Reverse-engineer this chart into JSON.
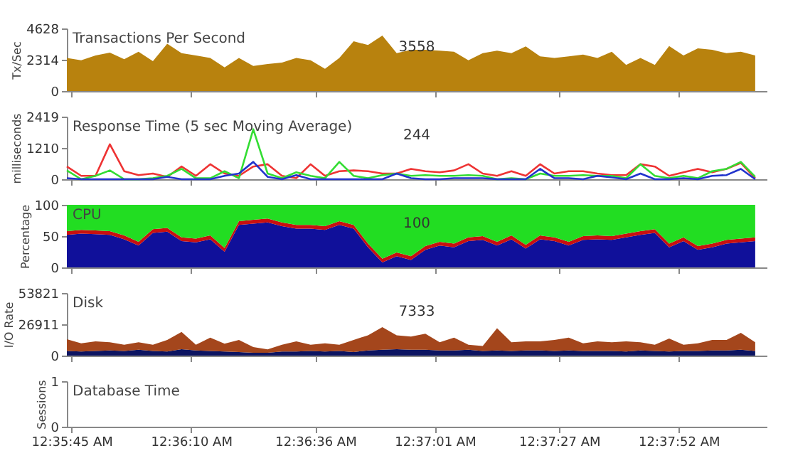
{
  "chart_data": [
    {
      "type": "area",
      "title": "Transactions Per Second",
      "ylabel": "Tx/Sec",
      "annotations": [
        "3558"
      ],
      "tick_labels": "y",
      "xlim": [
        0.595556,
        0.636222
      ],
      "xticks": [
        {
          "value": 0.595833,
          "label": null
        },
        {
          "value": 0.602778,
          "label": null
        },
        {
          "value": 0.61,
          "label": null
        },
        {
          "value": 0.616944,
          "label": null
        },
        {
          "value": 0.624167,
          "label": null
        },
        {
          "value": 0.631111,
          "label": null
        }
      ],
      "ylim": [
        0,
        4628
      ],
      "yticks": [
        0,
        2314,
        4628
      ],
      "x": [
        0.595556,
        0.596389,
        0.597222,
        0.598056,
        0.598889,
        0.599722,
        0.600556,
        0.601389,
        0.602222,
        0.603056,
        0.603889,
        0.604722,
        0.605556,
        0.606389,
        0.607222,
        0.608056,
        0.608889,
        0.609722,
        0.610556,
        0.611389,
        0.612222,
        0.613056,
        0.613889,
        0.614722,
        0.615556,
        0.616389,
        0.617222,
        0.618056,
        0.618889,
        0.619722,
        0.620556,
        0.621389,
        0.622222,
        0.623056,
        0.623889,
        0.624722,
        0.625556,
        0.626389,
        0.627222,
        0.628056,
        0.628889,
        0.629722,
        0.630556,
        0.631389,
        0.632222,
        0.633056,
        0.633889,
        0.634722,
        0.635556
      ],
      "series": [
        {
          "color": "#b8820e",
          "values": [
            2450,
            2280,
            2630,
            2840,
            2350,
            2910,
            2210,
            3500,
            2800,
            2630,
            2450,
            1750,
            2450,
            1860,
            2000,
            2100,
            2450,
            2280,
            1650,
            2450,
            3680,
            3400,
            4100,
            2800,
            3050,
            3050,
            2980,
            2910,
            2280,
            2800,
            2980,
            2800,
            3300,
            2560,
            2450,
            2560,
            2700,
            2450,
            2910,
            1930,
            2450,
            1930,
            3330,
            2630,
            3160,
            3050,
            2800,
            2910,
            2630
          ]
        }
      ]
    },
    {
      "type": "line",
      "title": "Response Time (5 sec Moving Average)",
      "ylabel": "milliseconds",
      "annotations": [
        "244"
      ],
      "tick_labels": "y",
      "xlim": [
        0.595556,
        0.636222
      ],
      "xticks": [
        {
          "value": 0.595833,
          "label": null
        },
        {
          "value": 0.602778,
          "label": null
        },
        {
          "value": 0.61,
          "label": null
        },
        {
          "value": 0.616944,
          "label": null
        },
        {
          "value": 0.624167,
          "label": null
        },
        {
          "value": 0.631111,
          "label": null
        }
      ],
      "ylim": [
        0,
        2419
      ],
      "yticks": [
        0,
        1210,
        2419
      ],
      "line_style": "solid",
      "marker": "none",
      "x": [
        0.595556,
        0.596389,
        0.597222,
        0.598056,
        0.598889,
        0.599722,
        0.600556,
        0.601389,
        0.602222,
        0.603056,
        0.603889,
        0.604722,
        0.605556,
        0.606389,
        0.607222,
        0.608056,
        0.608889,
        0.609722,
        0.610556,
        0.611389,
        0.612222,
        0.613056,
        0.613889,
        0.614722,
        0.615556,
        0.616389,
        0.617222,
        0.618056,
        0.618889,
        0.619722,
        0.620556,
        0.621389,
        0.622222,
        0.623056,
        0.623889,
        0.624722,
        0.625556,
        0.626389,
        0.627222,
        0.628056,
        0.628889,
        0.629722,
        0.630556,
        0.631389,
        0.632222,
        0.633056,
        0.633889,
        0.634722,
        0.635556
      ],
      "series": [
        {
          "color": "#ee3333",
          "values": [
            490,
            130,
            130,
            1350,
            310,
            160,
            220,
            90,
            490,
            130,
            580,
            220,
            130,
            490,
            580,
            130,
            40,
            580,
            130,
            310,
            340,
            310,
            220,
            220,
            400,
            310,
            270,
            340,
            580,
            220,
            130,
            310,
            130,
            580,
            220,
            310,
            310,
            220,
            160,
            160,
            580,
            490,
            130,
            270,
            400,
            270,
            400,
            630,
            40
          ]
        },
        {
          "color": "#33dd33",
          "values": [
            340,
            0,
            130,
            340,
            0,
            0,
            40,
            130,
            400,
            40,
            40,
            310,
            40,
            1930,
            220,
            40,
            270,
            130,
            40,
            670,
            130,
            40,
            160,
            220,
            130,
            160,
            130,
            130,
            160,
            130,
            0,
            40,
            0,
            220,
            130,
            130,
            160,
            130,
            130,
            40,
            580,
            130,
            40,
            130,
            40,
            310,
            400,
            670,
            90
          ]
        },
        {
          "color": "#2233cc",
          "values": [
            40,
            0,
            0,
            0,
            0,
            0,
            0,
            90,
            0,
            0,
            0,
            130,
            220,
            670,
            90,
            0,
            160,
            0,
            0,
            0,
            0,
            0,
            0,
            220,
            40,
            0,
            0,
            40,
            40,
            40,
            0,
            0,
            0,
            400,
            40,
            40,
            0,
            130,
            70,
            0,
            220,
            0,
            0,
            40,
            0,
            130,
            160,
            400,
            0
          ]
        }
      ]
    },
    {
      "type": "area",
      "stacked": true,
      "title": "CPU",
      "ylabel": "Percentage",
      "annotations": [
        "100"
      ],
      "tick_labels": "y",
      "xlim": [
        0.595556,
        0.636222
      ],
      "xticks": [
        {
          "value": 0.595833,
          "label": null
        },
        {
          "value": 0.602778,
          "label": null
        },
        {
          "value": 0.61,
          "label": null
        },
        {
          "value": 0.616944,
          "label": null
        },
        {
          "value": 0.624167,
          "label": null
        },
        {
          "value": 0.631111,
          "label": null
        }
      ],
      "ylim": [
        0,
        100
      ],
      "yticks": [
        0,
        50,
        100
      ],
      "x": [
        0.595556,
        0.596389,
        0.597222,
        0.598056,
        0.598889,
        0.599722,
        0.600556,
        0.601389,
        0.602222,
        0.603056,
        0.603889,
        0.604722,
        0.605556,
        0.606389,
        0.607222,
        0.608056,
        0.608889,
        0.609722,
        0.610556,
        0.611389,
        0.612222,
        0.613056,
        0.613889,
        0.614722,
        0.615556,
        0.616389,
        0.617222,
        0.618056,
        0.618889,
        0.619722,
        0.620556,
        0.621389,
        0.622222,
        0.623056,
        0.623889,
        0.624722,
        0.625556,
        0.626389,
        0.627222,
        0.628056,
        0.628889,
        0.629722,
        0.630556,
        0.631389,
        0.632222,
        0.633056,
        0.633889,
        0.634722,
        0.635556
      ],
      "series": [
        {
          "color": "#10109a",
          "values": [
            52,
            54,
            53,
            52,
            45,
            35,
            55,
            57,
            42,
            40,
            45,
            25,
            68,
            70,
            72,
            66,
            62,
            62,
            60,
            68,
            62,
            32,
            8,
            18,
            12,
            28,
            35,
            32,
            42,
            44,
            35,
            45,
            30,
            45,
            42,
            35,
            44,
            45,
            44,
            48,
            52,
            55,
            32,
            42,
            28,
            32,
            38,
            40,
            42
          ]
        },
        {
          "color": "#c81010",
          "values": [
            6,
            6,
            6,
            6,
            6,
            6,
            6,
            6,
            6,
            6,
            6,
            6,
            6,
            6,
            6,
            6,
            6,
            6,
            6,
            6,
            6,
            6,
            6,
            6,
            6,
            6,
            6,
            6,
            6,
            6,
            6,
            6,
            6,
            6,
            6,
            6,
            6,
            6,
            6,
            6,
            6,
            6,
            6,
            6,
            6,
            6,
            6,
            6,
            6
          ]
        },
        {
          "color": "#22dd22",
          "values": [
            42,
            40,
            41,
            42,
            49,
            59,
            39,
            37,
            52,
            54,
            49,
            69,
            26,
            24,
            22,
            28,
            32,
            32,
            34,
            26,
            32,
            62,
            86,
            76,
            82,
            66,
            59,
            62,
            52,
            50,
            59,
            49,
            64,
            49,
            52,
            59,
            50,
            49,
            50,
            46,
            42,
            39,
            62,
            52,
            66,
            62,
            56,
            54,
            52
          ]
        }
      ]
    },
    {
      "type": "area",
      "stacked": true,
      "title": "Disk",
      "ylabel": "I/O Rate",
      "annotations": [
        "7333"
      ],
      "tick_labels": "y",
      "xlim": [
        0.595556,
        0.636222
      ],
      "xticks": [
        {
          "value": 0.595833,
          "label": null
        },
        {
          "value": 0.602778,
          "label": null
        },
        {
          "value": 0.61,
          "label": null
        },
        {
          "value": 0.616944,
          "label": null
        },
        {
          "value": 0.624167,
          "label": null
        },
        {
          "value": 0.631111,
          "label": null
        }
      ],
      "ylim": [
        0,
        53821
      ],
      "yticks": [
        0,
        26911,
        53821
      ],
      "x": [
        0.595556,
        0.596389,
        0.597222,
        0.598056,
        0.598889,
        0.599722,
        0.600556,
        0.601389,
        0.602222,
        0.603056,
        0.603889,
        0.604722,
        0.605556,
        0.606389,
        0.607222,
        0.608056,
        0.608889,
        0.609722,
        0.610556,
        0.611389,
        0.612222,
        0.613056,
        0.613889,
        0.614722,
        0.615556,
        0.616389,
        0.617222,
        0.618056,
        0.618889,
        0.619722,
        0.620556,
        0.621389,
        0.622222,
        0.623056,
        0.623889,
        0.624722,
        0.625556,
        0.626389,
        0.627222,
        0.628056,
        0.628889,
        0.629722,
        0.630556,
        0.631389,
        0.632222,
        0.633056,
        0.633889,
        0.634722,
        0.635556
      ],
      "series": [
        {
          "color": "#0c1462",
          "values": [
            4000,
            3500,
            4000,
            4500,
            4000,
            5000,
            4000,
            3500,
            5500,
            4500,
            4000,
            3500,
            3000,
            2500,
            2500,
            3500,
            3500,
            4000,
            3500,
            4000,
            3000,
            4500,
            5000,
            5500,
            5000,
            5000,
            4500,
            4500,
            5000,
            4000,
            4500,
            4000,
            4500,
            4500,
            4000,
            4500,
            4000,
            4000,
            4000,
            3500,
            4500,
            4000,
            3500,
            4000,
            4000,
            4500,
            4500,
            5000,
            4000
          ]
        },
        {
          "color": "#a4461c",
          "values": [
            10000,
            7100,
            8200,
            6900,
            5400,
            6400,
            5400,
            10000,
            14900,
            4900,
            11500,
            6700,
            10500,
            4800,
            2800,
            5900,
            8700,
            5400,
            7100,
            5400,
            10500,
            13000,
            19500,
            12000,
            11300,
            13800,
            6900,
            11000,
            4400,
            4200,
            19100,
            7400,
            7700,
            7700,
            9500,
            11000,
            6600,
            8200,
            7400,
            8700,
            6900,
            5400,
            11200,
            5400,
            6600,
            9000,
            9000,
            14600,
            7400
          ]
        }
      ]
    },
    {
      "type": "line",
      "title": "Database Time",
      "ylabel": "Sessions",
      "xlim": [
        0.595556,
        0.636222
      ],
      "ylim": [
        0,
        1
      ],
      "yticks": [
        0,
        1
      ],
      "xticks": [
        {
          "value": 0.595833,
          "label": "12:35:45 AM"
        },
        {
          "value": 0.602778,
          "label": "12:36:10 AM"
        },
        {
          "value": 0.61,
          "label": "12:36:36 AM"
        },
        {
          "value": 0.616944,
          "label": "12:37:01 AM"
        },
        {
          "value": 0.624167,
          "label": "12:37:27 AM"
        },
        {
          "value": 0.631111,
          "label": "12:37:52 AM"
        }
      ]
    }
  ]
}
